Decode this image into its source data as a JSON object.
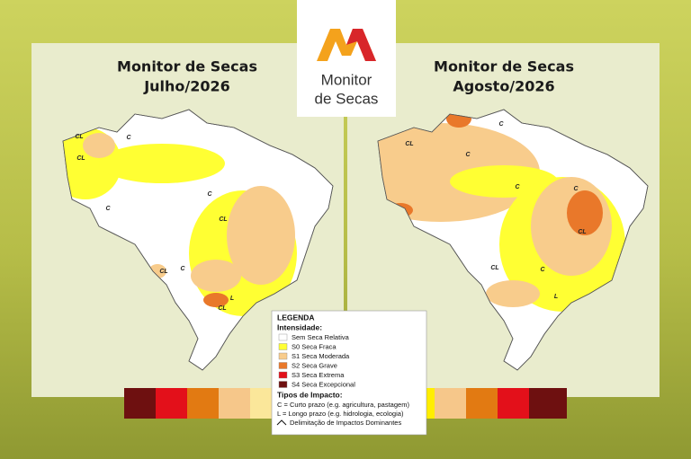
{
  "logo": {
    "line1": "Monitor",
    "line2": "de Secas"
  },
  "maps": [
    {
      "title": "Monitor de Secas",
      "subtitle": "Julho/2026",
      "labels": [
        "CL",
        "CL",
        "C",
        "C",
        "C",
        "CL",
        "C",
        "CL",
        "L",
        "CL"
      ]
    },
    {
      "title": "Monitor de Secas",
      "subtitle": "Agosto/2026",
      "labels": [
        "CL",
        "C",
        "C",
        "C",
        "C",
        "CL",
        "C",
        "CL",
        "L"
      ]
    }
  ],
  "legend": {
    "title": "LEGENDA",
    "intensity_heading": "Intensidade:",
    "categories": [
      {
        "label": "Sem Seca Relativa",
        "color": "#ffffff"
      },
      {
        "label": "S0 Seca Fraca",
        "color": "#ffff33"
      },
      {
        "label": "S1 Seca Moderada",
        "color": "#f8cc8c"
      },
      {
        "label": "S2 Seca Grave",
        "color": "#e9782a"
      },
      {
        "label": "S3 Seca Extrema",
        "color": "#e3101a"
      },
      {
        "label": "S4 Seca Excepcional",
        "color": "#6e1010"
      }
    ],
    "impact_heading": "Tipos de Impacto:",
    "impacts": [
      "C = Curto prazo (e.g. agricultura, pastagem)",
      "L = Longo prazo (e.g. hidrologia, ecologia)"
    ],
    "boundary": "Delimitação de Impactos Dominantes"
  }
}
